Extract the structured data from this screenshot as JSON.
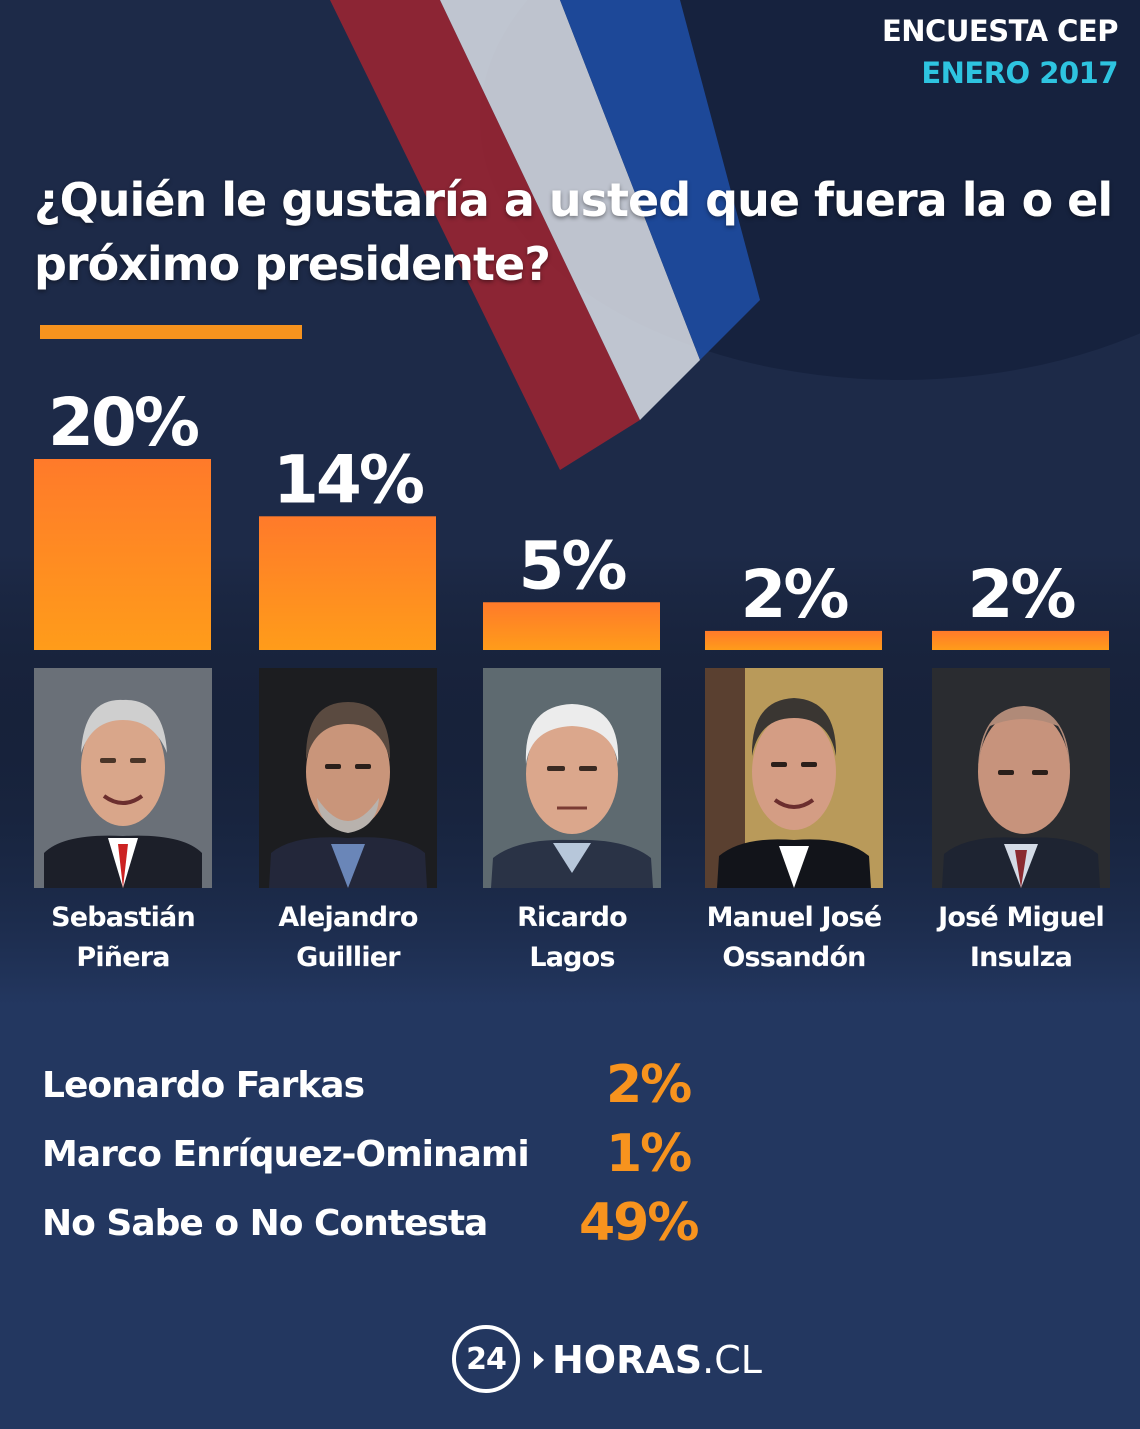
{
  "header": {
    "survey": "ENCUESTA CEP",
    "date": "ENERO 2017"
  },
  "question": "¿Quién le gustaría a usted que fuera la o el próximo presidente?",
  "colors": {
    "accent": "#f7931e",
    "bar_top": "#ff7a2a",
    "bar_bottom": "#ff9c1a",
    "date_color": "#2ec4e0",
    "background": "#233760"
  },
  "chart_data": {
    "type": "bar",
    "title": "¿Quién le gustaría a usted que fuera la o el próximo presidente?",
    "categories": [
      "Sebastián Piñera",
      "Alejandro Guillier",
      "Ricardo Lagos",
      "Manuel José Ossandón",
      "José Miguel Insulza"
    ],
    "values": [
      20,
      14,
      5,
      2,
      2
    ],
    "data_labels": [
      "20%",
      "14%",
      "5%",
      "2%",
      "2%"
    ],
    "unit": "%",
    "ylim": [
      0,
      20
    ],
    "grid": false,
    "legend": "none"
  },
  "candidates": [
    {
      "line1": "Sebastián",
      "line2": "Piñera"
    },
    {
      "line1": "Alejandro",
      "line2": "Guillier"
    },
    {
      "line1": "Ricardo",
      "line2": "Lagos"
    },
    {
      "line1": "Manuel José",
      "line2": "Ossandón"
    },
    {
      "line1": "José Miguel",
      "line2": "Insulza"
    }
  ],
  "others": [
    {
      "name": "Leonardo Farkas",
      "value": "2%"
    },
    {
      "name": "Marco Enríquez-Ominami",
      "value": "1%"
    },
    {
      "name": "No Sabe o No Contesta",
      "value": "49%"
    }
  ],
  "logo": {
    "number": "24",
    "brand": "HORAS",
    "suffix": ".CL"
  }
}
